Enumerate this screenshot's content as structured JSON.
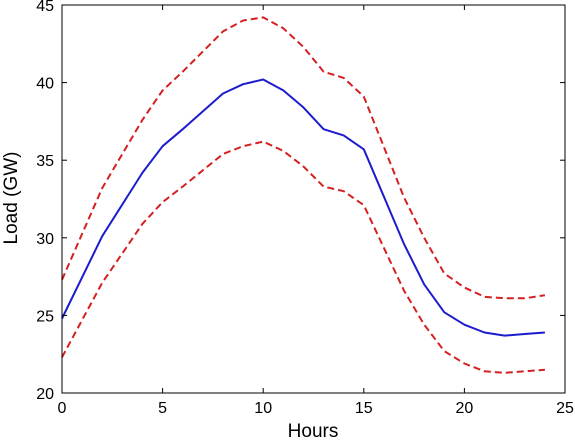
{
  "chart_data": {
    "type": "line",
    "xlabel": "Hours",
    "ylabel": "Load (GW)",
    "xlim": [
      0,
      25
    ],
    "ylim": [
      20,
      45
    ],
    "xticks": [
      0,
      5,
      10,
      15,
      20,
      25
    ],
    "yticks": [
      20,
      25,
      30,
      35,
      40,
      45
    ],
    "grid": false,
    "x": [
      0,
      2,
      4,
      5,
      6,
      8,
      9,
      10,
      11,
      12,
      13,
      14,
      15,
      17,
      18,
      19,
      20,
      21,
      22,
      23,
      24
    ],
    "series": [
      {
        "color": "#d42020",
        "style": "dashed",
        "values": [
          27.3,
          33.2,
          37.6,
          39.5,
          40.7,
          43.3,
          44.0,
          44.2,
          43.5,
          42.3,
          40.7,
          40.3,
          39.1,
          32.6,
          30.0,
          27.7,
          26.8,
          26.2,
          26.1,
          26.1,
          26.3
        ]
      },
      {
        "color": "#1c1ccf",
        "style": "solid",
        "values": [
          24.8,
          30.1,
          34.2,
          35.9,
          37.0,
          39.3,
          39.9,
          40.2,
          39.5,
          38.4,
          37.0,
          36.6,
          35.7,
          29.6,
          27.0,
          25.2,
          24.4,
          23.9,
          23.7,
          23.8,
          23.9
        ]
      },
      {
        "color": "#d42020",
        "style": "dashed",
        "values": [
          22.3,
          27.1,
          30.9,
          32.3,
          33.3,
          35.4,
          35.9,
          36.2,
          35.6,
          34.6,
          33.3,
          33.0,
          32.1,
          26.6,
          24.4,
          22.7,
          21.9,
          21.4,
          21.3,
          21.4,
          21.5
        ]
      }
    ]
  }
}
